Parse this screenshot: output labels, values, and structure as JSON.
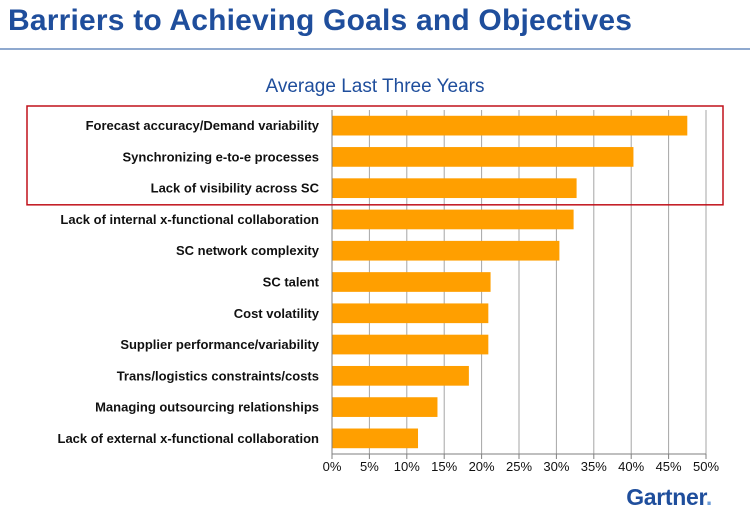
{
  "header": {
    "title": "Barriers to Achieving Goals and Objectives"
  },
  "brand": {
    "name": "Gartner",
    "dot": ".",
    "color": "#1f4e9c"
  },
  "chart_data": {
    "type": "bar",
    "orientation": "horizontal",
    "title": "Average Last Three Years",
    "xlabel": "",
    "ylabel": "",
    "categories": [
      "Forecast accuracy/Demand variability",
      "Synchronizing e-to-e processes",
      "Lack of visibility across SC",
      "Lack of internal x-functional collaboration",
      "SC network complexity",
      "SC talent",
      "Cost volatility",
      "Supplier performance/variability",
      "Trans/logistics constraints/costs",
      "Managing outsourcing relationships",
      "Lack of external x-functional collaboration"
    ],
    "values": [
      47.5,
      40.3,
      32.7,
      32.3,
      30.4,
      21.2,
      20.9,
      20.9,
      18.3,
      14.1,
      11.5
    ],
    "xlim": [
      0,
      50
    ],
    "xticks": [
      "0%",
      "5%",
      "10%",
      "15%",
      "20%",
      "25%",
      "30%",
      "35%",
      "40%",
      "45%",
      "50%"
    ],
    "grid": true,
    "highlight_box_rows": [
      0,
      1,
      2
    ],
    "bar_color": "#ff9f00",
    "highlight_color": "#c0101a",
    "grid_color": "#a6a6a6"
  }
}
